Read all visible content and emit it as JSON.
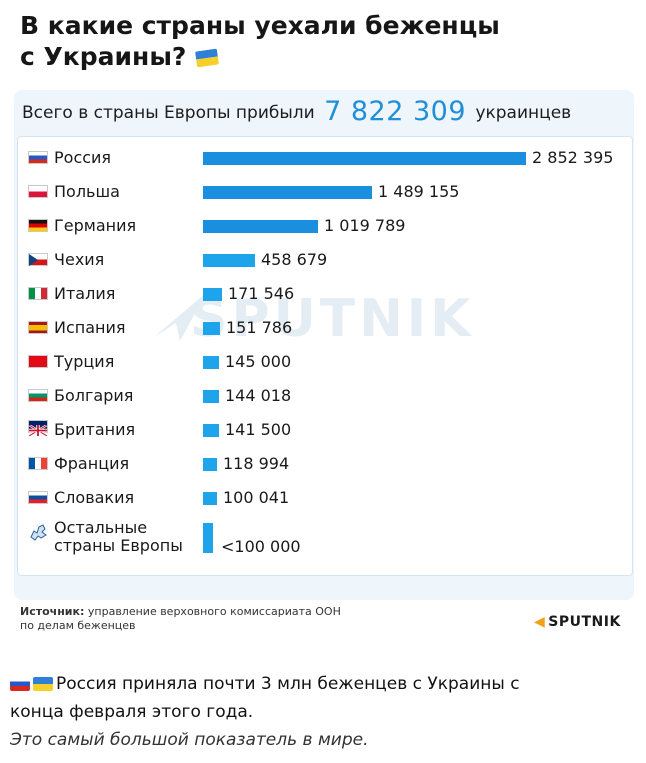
{
  "header": {
    "title_line1": "В какие страны уехали беженцы",
    "title_line2": "с Украины?"
  },
  "total": {
    "prefix": "Всего в страны Европы прибыли",
    "value": "7 822 309",
    "suffix": "украинцев"
  },
  "chart_data": {
    "type": "bar",
    "orientation": "horizontal",
    "categories": [
      "Россия",
      "Польша",
      "Германия",
      "Чехия",
      "Италия",
      "Испания",
      "Турция",
      "Болгария",
      "Британия",
      "Франция",
      "Словакия",
      "Остальные страны Европы"
    ],
    "values": [
      2852395,
      1489155,
      1019789,
      458679,
      171546,
      151786,
      145000,
      144018,
      141500,
      118994,
      100041,
      100000
    ],
    "value_labels": [
      "2 852 395",
      "1 489 155",
      "1 019 789",
      "458 679",
      "171 546",
      "151 786",
      "145 000",
      "144 018",
      "141 500",
      "118 994",
      "100 041",
      "<100 000"
    ],
    "bar_color": "#1a8fe0",
    "grid": false,
    "legend": "none"
  },
  "other_label": {
    "line1": "Остальные",
    "line2": "страны Европы"
  },
  "source": {
    "label": "Источник:",
    "text_line1": "управление верховного комиссариата ООН",
    "text_line2": "по делам беженцев"
  },
  "brand": "SPUTNIK",
  "watermark": "SPUTNIK",
  "caption": {
    "line1": "Россия приняла почти 3 млн беженцев с Украины с",
    "line2": "конца февраля этого года.",
    "line3": "Это самый большой показатель в мире."
  },
  "colors": {
    "accent": "#1f8fd8",
    "panel_bg": "#eef5fb",
    "brand_orange": "#f0a21a"
  }
}
